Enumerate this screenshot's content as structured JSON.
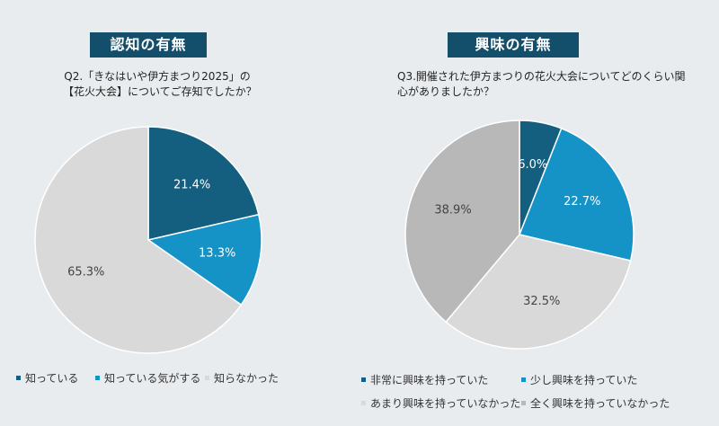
{
  "chart_data": [
    {
      "type": "pie",
      "title": "認知の有無",
      "subtitle": [
        "Q2.「きなはいや伊方まつり2025」の",
        "【花火大会】についてご存知でしたか？"
      ],
      "categories": [
        "知っている",
        "知っている気がする",
        "知らなかった"
      ],
      "values": [
        21.4,
        13.3,
        65.3
      ],
      "value_labels": [
        "21.4%",
        "13.3%",
        "65.3%"
      ],
      "colors": [
        "#145e80",
        "#1593c6",
        "#d9d9d9"
      ],
      "label_colors": [
        "#ffffff",
        "#ffffff",
        "#444444"
      ],
      "legend_position": "bottom"
    },
    {
      "type": "pie",
      "title": "興味の有無",
      "subtitle": [
        "Q3.開催された伊方まつりの花火大会についてどのくらい関",
        "心がありましたか？"
      ],
      "categories": [
        "非常に興味を持っていた",
        "少し興味を持っていた",
        "あまり興味を持っていなかった",
        "全く興味を持っていなかった"
      ],
      "values": [
        6.0,
        22.7,
        32.5,
        38.9
      ],
      "value_labels": [
        "6.0%",
        "22.7%",
        "32.5%",
        "38.9%"
      ],
      "colors": [
        "#145e80",
        "#1593c6",
        "#d9d9d9",
        "#b8b8b8"
      ],
      "label_colors": [
        "#ffffff",
        "#ffffff",
        "#444444",
        "#444444"
      ],
      "legend_position": "bottom"
    }
  ]
}
